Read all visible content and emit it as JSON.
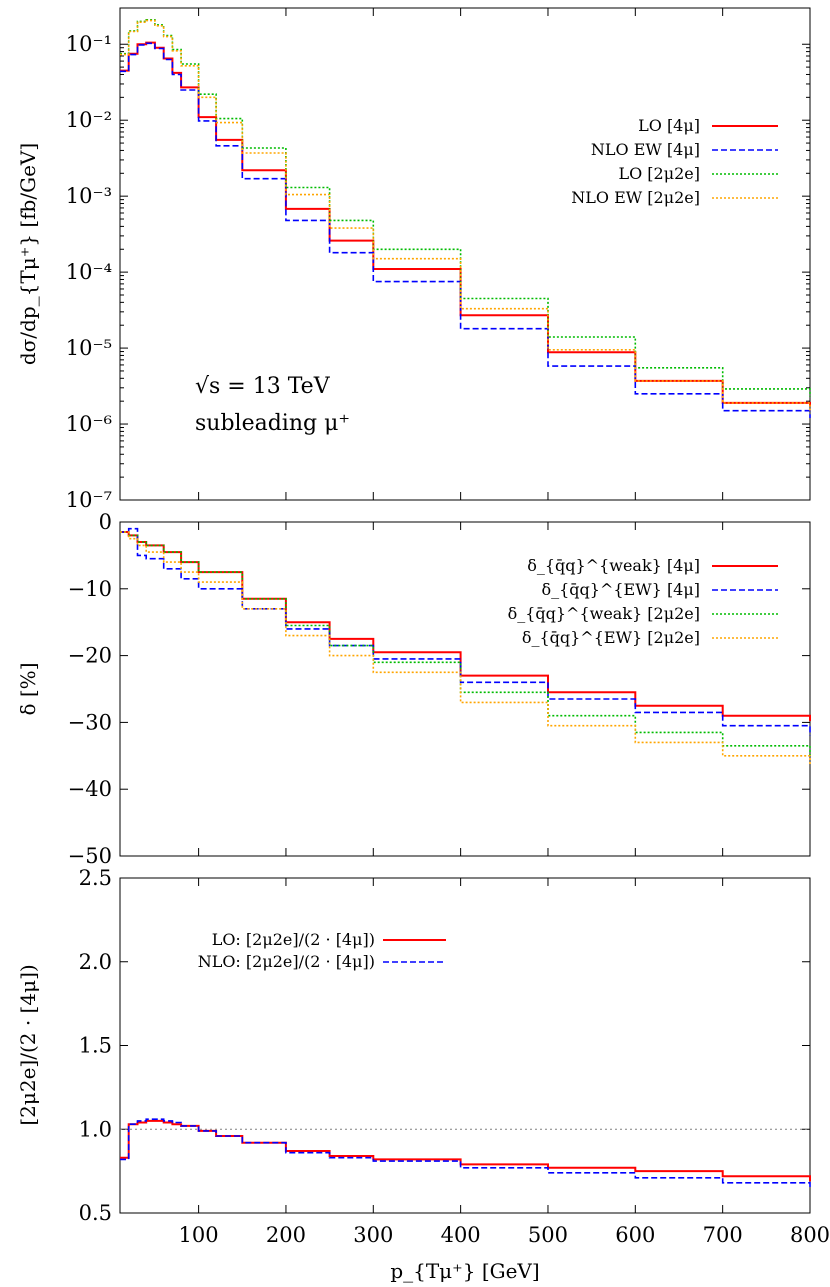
{
  "figure": {
    "xlabel": "p_{Tμ⁺} [GeV]",
    "x_ticks": [
      "100",
      "200",
      "300",
      "400",
      "500",
      "600",
      "700",
      "800"
    ],
    "xlim": [
      10,
      800
    ]
  },
  "annotations": {
    "energy": "√s = 13 TeV",
    "particle": "subleading μ⁺"
  },
  "colors": {
    "red": "#ff0000",
    "blue": "#0000ff",
    "green": "#00bb00",
    "orange": "#ffa500",
    "ref_line": "#808080"
  },
  "chart_data": [
    {
      "type": "line",
      "panel": "top",
      "ylabel": "dσ/dp_{Tμ⁺} [fb/GeV]",
      "yscale": "log",
      "ylim": [
        1e-07,
        0.3
      ],
      "y_ticks": [
        "10⁻⁷",
        "10⁻⁶",
        "10⁻⁵",
        "10⁻⁴",
        "10⁻³",
        "10⁻²",
        "10⁻¹"
      ],
      "legend_position": "top-right",
      "x": [
        10,
        20,
        30,
        40,
        50,
        60,
        70,
        80,
        100,
        120,
        150,
        200,
        250,
        300,
        400,
        500,
        600,
        700,
        800
      ],
      "series": [
        {
          "name": "LO [4μ]",
          "color": "#ff0000",
          "dash": "solid",
          "values": [
            0.045,
            0.075,
            0.1,
            0.105,
            0.09,
            0.065,
            0.042,
            0.027,
            0.011,
            0.0055,
            0.0022,
            0.00068,
            0.00026,
            0.00011,
            2.7e-05,
            8.8e-06,
            3.7e-06,
            1.9e-06,
            1.7e-06
          ]
        },
        {
          "name": "NLO EW [4μ]",
          "color": "#0000ff",
          "dash": "dashed",
          "values": [
            0.044,
            0.073,
            0.098,
            0.103,
            0.088,
            0.063,
            0.04,
            0.025,
            0.0098,
            0.0046,
            0.0017,
            0.00048,
            0.00018,
            7.5e-05,
            1.8e-05,
            5.8e-06,
            2.5e-06,
            1.5e-06,
            1.2e-06
          ]
        },
        {
          "name": "LO [2μ2e]",
          "color": "#00bb00",
          "dash": "dotted",
          "values": [
            0.075,
            0.15,
            0.2,
            0.21,
            0.18,
            0.13,
            0.085,
            0.055,
            0.022,
            0.0105,
            0.0043,
            0.0013,
            0.00048,
            0.0002,
            4.5e-05,
            1.4e-05,
            5.5e-06,
            2.9e-06,
            2.3e-06
          ]
        },
        {
          "name": "NLO EW [2μ2e]",
          "color": "#ffa500",
          "dash": "dotted",
          "values": [
            0.073,
            0.147,
            0.195,
            0.205,
            0.175,
            0.126,
            0.082,
            0.052,
            0.02,
            0.0093,
            0.0037,
            0.00105,
            0.00038,
            0.00015,
            3.3e-05,
            9.5e-06,
            3.7e-06,
            1.9e-06,
            1.5e-06
          ]
        }
      ]
    },
    {
      "type": "line",
      "panel": "middle",
      "ylabel": "δ [%]",
      "ylim": [
        -50,
        0
      ],
      "y_ticks": [
        "0",
        "−10",
        "−20",
        "−30",
        "−40",
        "−50"
      ],
      "legend_position": "top-right",
      "x": [
        10,
        20,
        30,
        40,
        60,
        80,
        100,
        150,
        200,
        250,
        300,
        400,
        500,
        600,
        700,
        800
      ],
      "series": [
        {
          "name": "δ_{q̄q}^{weak} [4μ]",
          "color": "#ff0000",
          "dash": "solid",
          "values": [
            -1.5,
            -2.0,
            -3.0,
            -3.5,
            -4.5,
            -6.0,
            -7.5,
            -11.5,
            -15.0,
            -17.5,
            -19.5,
            -23.0,
            -25.5,
            -27.5,
            -29.0,
            -29.8
          ]
        },
        {
          "name": "δ_{q̄q}^{EW} [4μ]",
          "color": "#0000ff",
          "dash": "dashed",
          "values": [
            -1.5,
            -1.0,
            -5.0,
            -5.5,
            -7.0,
            -8.5,
            -10.0,
            -13.0,
            -16.0,
            -18.5,
            -20.5,
            -24.0,
            -26.5,
            -28.5,
            -30.5,
            -32.0
          ]
        },
        {
          "name": "δ_{q̄q}^{weak} [2μ2e]",
          "color": "#00bb00",
          "dash": "dotted",
          "values": [
            -1.5,
            -2.0,
            -3.0,
            -3.5,
            -4.5,
            -6.0,
            -7.5,
            -11.5,
            -15.5,
            -18.5,
            -21.0,
            -25.5,
            -29.0,
            -31.5,
            -33.5,
            -35.0
          ]
        },
        {
          "name": "δ_{q̄q}^{EW} [2μ2e]",
          "color": "#ffa500",
          "dash": "dotted",
          "values": [
            -1.5,
            -2.5,
            -3.5,
            -4.5,
            -6.0,
            -7.5,
            -9.0,
            -13.0,
            -17.0,
            -20.0,
            -22.5,
            -27.0,
            -30.5,
            -33.0,
            -35.0,
            -36.5
          ]
        }
      ]
    },
    {
      "type": "line",
      "panel": "bottom",
      "ylabel": "[2μ2e]/(2 · [4μ])",
      "ylim": [
        0.5,
        2.5
      ],
      "y_ticks": [
        "0.5",
        "1.0",
        "1.5",
        "2.0",
        "2.5"
      ],
      "reference_line": 1.0,
      "legend_position": "top-left",
      "x": [
        10,
        20,
        30,
        40,
        50,
        60,
        70,
        80,
        100,
        120,
        150,
        200,
        250,
        300,
        400,
        500,
        600,
        700,
        800
      ],
      "series": [
        {
          "name": "LO: [2μ2e]/(2 · [4μ])",
          "color": "#ff0000",
          "dash": "solid",
          "values": [
            0.83,
            1.03,
            1.04,
            1.05,
            1.05,
            1.04,
            1.03,
            1.02,
            0.99,
            0.96,
            0.92,
            0.87,
            0.84,
            0.82,
            0.79,
            0.77,
            0.75,
            0.72,
            0.69
          ]
        },
        {
          "name": "NLO: [2μ2e]/(2 · [4μ])",
          "color": "#0000ff",
          "dash": "dashed",
          "values": [
            0.82,
            1.03,
            1.05,
            1.06,
            1.06,
            1.05,
            1.04,
            1.02,
            0.99,
            0.96,
            0.92,
            0.86,
            0.83,
            0.81,
            0.77,
            0.74,
            0.71,
            0.68,
            0.65
          ]
        }
      ]
    }
  ]
}
